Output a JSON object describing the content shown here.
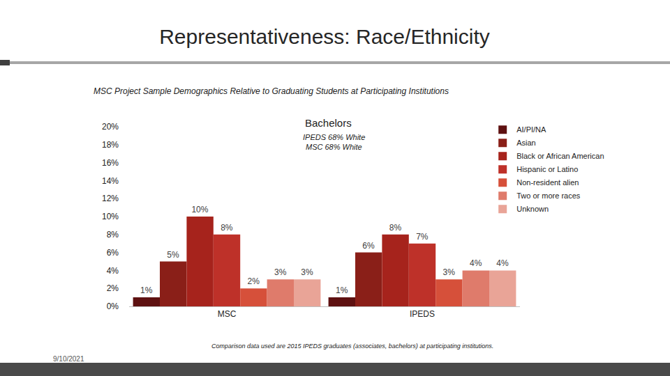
{
  "chart_data": {
    "type": "bar",
    "title": "Representativeness: Race/Ethnicity",
    "subtitle": "MSC Project Sample Demographics Relative to Graduating Students at Participating Institutions",
    "chart_title": "Bachelors",
    "annotations": [
      "IPEDS 68% White",
      "MSC 68% White"
    ],
    "footnote": "Comparison data used are 2015 IPEDS graduates (associates, bachelors) at participating institutions.",
    "date": "9/10/2021",
    "categories": [
      "MSC",
      "IPEDS"
    ],
    "series": [
      {
        "name": "AI/PI/NA",
        "color": "#5e1111",
        "values": [
          1,
          1
        ],
        "value_labels": [
          "1%",
          "1%"
        ]
      },
      {
        "name": "Asian",
        "color": "#8a1f18",
        "values": [
          5,
          6
        ],
        "value_labels": [
          "5%",
          "6%"
        ]
      },
      {
        "name": "Black or African American",
        "color": "#a6231c",
        "values": [
          10,
          8
        ],
        "value_labels": [
          "10%",
          "8%"
        ]
      },
      {
        "name": "Hispanic or Latino",
        "color": "#be3129",
        "values": [
          8,
          7
        ],
        "value_labels": [
          "8%",
          "7%"
        ]
      },
      {
        "name": "Non-resident alien",
        "color": "#d6503a",
        "values": [
          2,
          3
        ],
        "value_labels": [
          "2%",
          "3%"
        ]
      },
      {
        "name": "Two or more races",
        "color": "#df7b6b",
        "values": [
          3,
          4
        ],
        "value_labels": [
          "3%",
          "4%"
        ]
      },
      {
        "name": "Unknown",
        "color": "#e9a497",
        "values": [
          3,
          4
        ],
        "value_labels": [
          "3%",
          "4%"
        ]
      }
    ],
    "ylim": [
      0,
      20
    ],
    "yticks": [
      {
        "value": 0,
        "label": "0%"
      },
      {
        "value": 2,
        "label": "2%"
      },
      {
        "value": 4,
        "label": "4%"
      },
      {
        "value": 6,
        "label": "6%"
      },
      {
        "value": 8,
        "label": "8%"
      },
      {
        "value": 10,
        "label": "10%"
      },
      {
        "value": 12,
        "label": "12%"
      },
      {
        "value": 14,
        "label": "14%"
      },
      {
        "value": 16,
        "label": "16%"
      },
      {
        "value": 18,
        "label": "18%"
      },
      {
        "value": 20,
        "label": "20%"
      }
    ],
    "grid": false,
    "legend": "top-right",
    "data_labels": true
  }
}
